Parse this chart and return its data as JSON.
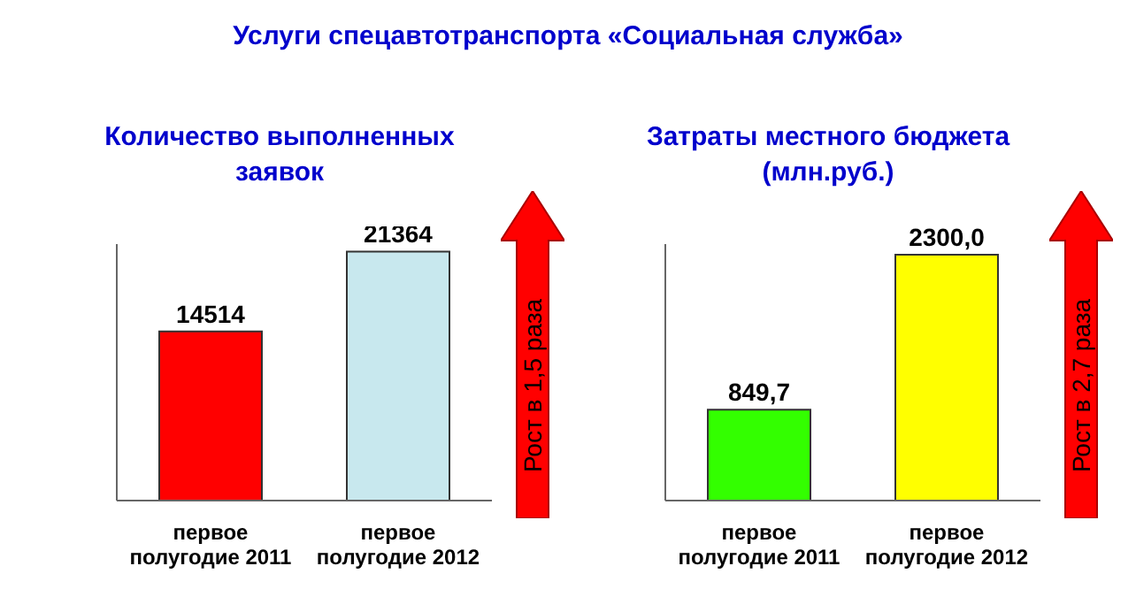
{
  "chart_data": [
    {
      "type": "bar",
      "title": "Услуги спецавтотранспорта «Социальная служба»",
      "subtitle": "Количество выполненных заявок",
      "categories": [
        "первое полугодие 2011",
        "первое полугодие 2012"
      ],
      "values": [
        14514,
        21364
      ],
      "colors": [
        "#ff0000",
        "#c8e8ee"
      ],
      "value_labels": [
        "14514",
        "21364"
      ],
      "tick_labels": "x",
      "annotations": [
        "Рост в 1,5 раза"
      ]
    },
    {
      "type": "bar",
      "subtitle": "Затраты местного бюджета (млн.руб.)",
      "categories": [
        "первое полугодие 2011",
        "первое полугодие 2012"
      ],
      "values": [
        849.7,
        2300.0
      ],
      "colors": [
        "#33ff00",
        "#ffff00"
      ],
      "value_labels": [
        "849,7",
        "2300,0"
      ],
      "tick_labels": "x",
      "annotations": [
        "Рост в 2,7 раза"
      ]
    }
  ]
}
